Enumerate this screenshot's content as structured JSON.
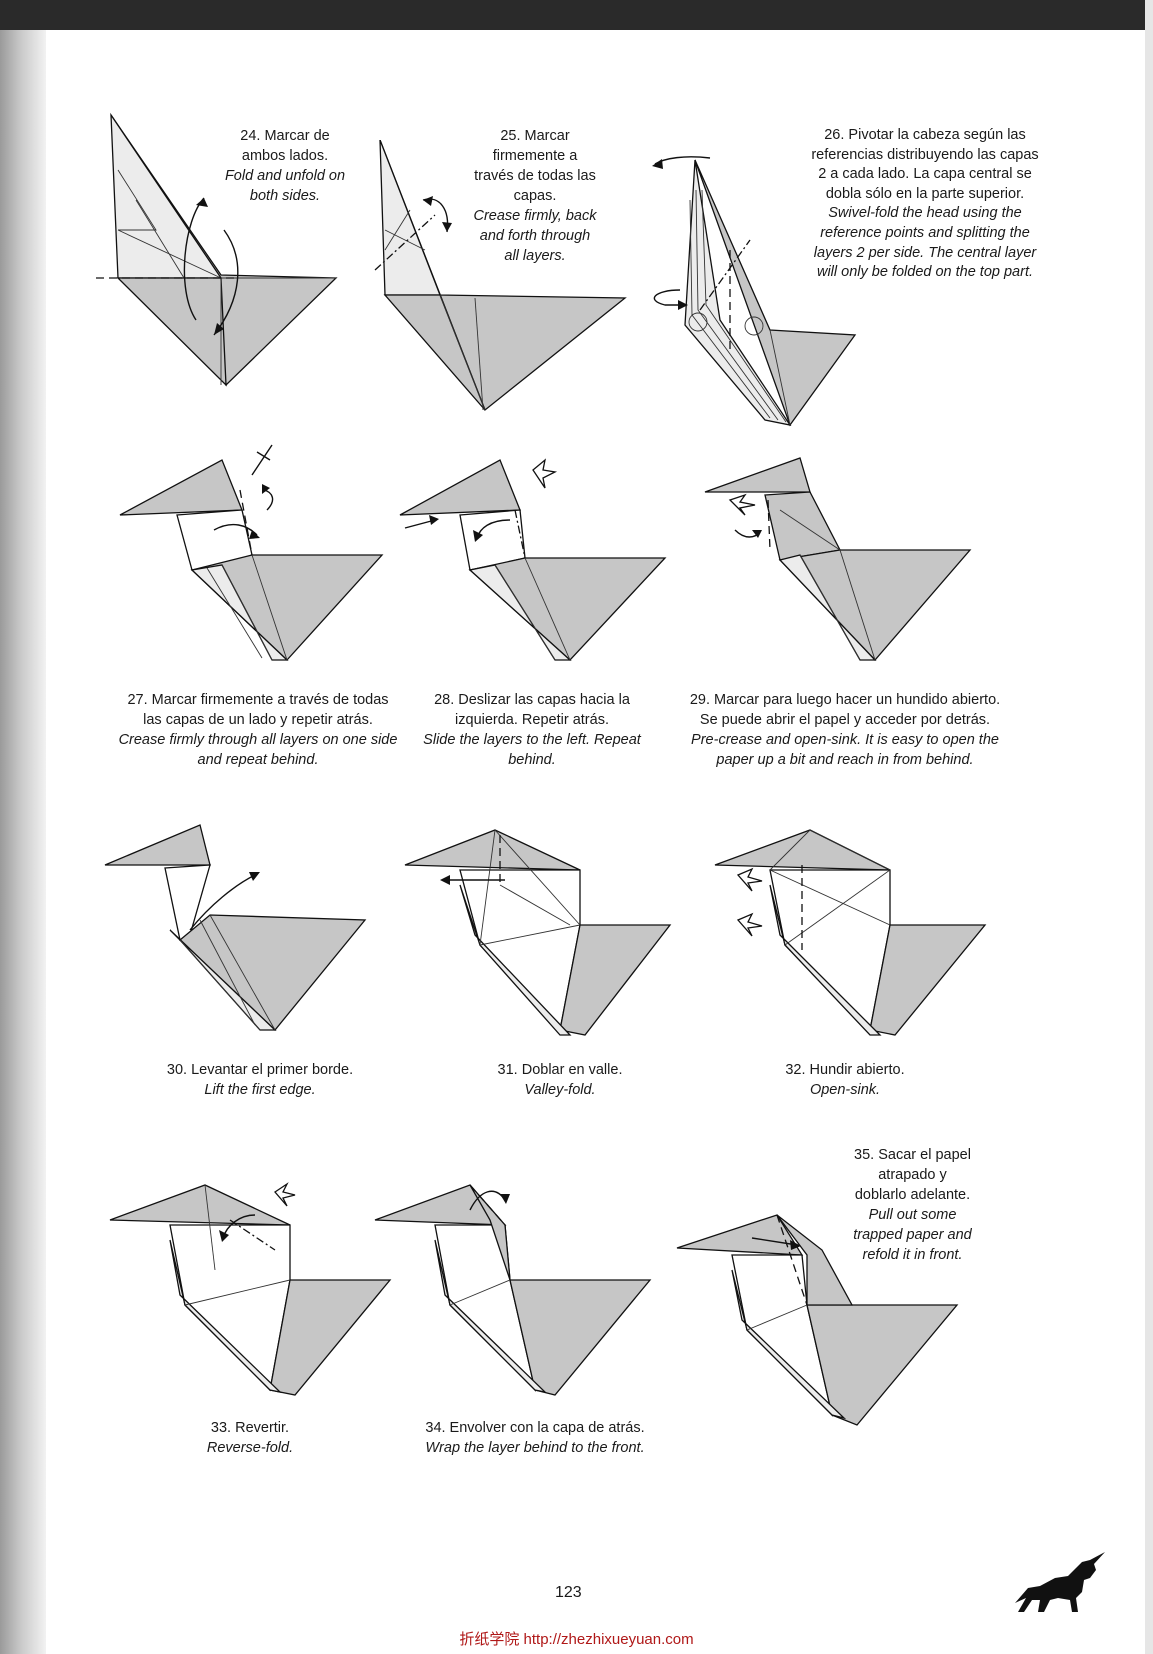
{
  "page": {
    "page_number": "123",
    "footer": "折纸学院 http://zhezhixueyuan.com"
  },
  "steps": [
    {
      "number": "24",
      "es": "24. Marcar de\nambos lados.",
      "en": "Fold and unfold on\nboth sides."
    },
    {
      "number": "25",
      "es": "25. Marcar\nfirmemente a\ntravés de todas las\ncapas.",
      "en": "Crease firmly, back\nand forth through\nall layers."
    },
    {
      "number": "26",
      "es": "26. Pivotar la cabeza según las\nreferencias distribuyendo las capas\n2 a cada lado. La capa central se\ndobla sólo en la parte superior.",
      "en": "Swivel-fold the  head using the\nreference points and splitting the\nlayers 2 per side. The central layer\nwill only be folded on the top part."
    },
    {
      "number": "27",
      "es": "27. Marcar firmemente a través de todas\nlas capas de un lado y repetir atrás.",
      "en": "Crease firmly through all layers on one side\nand repeat behind."
    },
    {
      "number": "28",
      "es": "28. Deslizar las capas hacia la\nizquierda. Repetir atrás.",
      "en": "Slide the layers to the left. Repeat\nbehind."
    },
    {
      "number": "29",
      "es": "29. Marcar para luego hacer un hundido abierto.\nSe puede abrir el papel y acceder por detrás.",
      "en": "Pre-crease and open-sink. It is easy to open the\npaper up a bit and reach in from behind."
    },
    {
      "number": "30",
      "es": "30. Levantar el primer borde.",
      "en": "Lift the first edge."
    },
    {
      "number": "31",
      "es": "31. Doblar en valle.",
      "en": "Valley-fold."
    },
    {
      "number": "32",
      "es": "32. Hundir abierto.",
      "en": "Open-sink."
    },
    {
      "number": "33",
      "es": "33. Revertir.",
      "en": "Reverse-fold."
    },
    {
      "number": "34",
      "es": "34. Envolver con la capa de atrás.",
      "en": "Wrap the layer behind to the front."
    },
    {
      "number": "35",
      "es": "35. Sacar el papel\natrapado y\ndoblarlo adelante.",
      "en": "Pull out some\ntrapped paper and\nrefold it in front."
    }
  ],
  "colors": {
    "paper_shade": "#c6c6c6",
    "paper_light": "#ececec",
    "line": "#111111",
    "footer_text": "#b01818"
  },
  "icons": [
    "unicorn-silhouette-icon"
  ]
}
